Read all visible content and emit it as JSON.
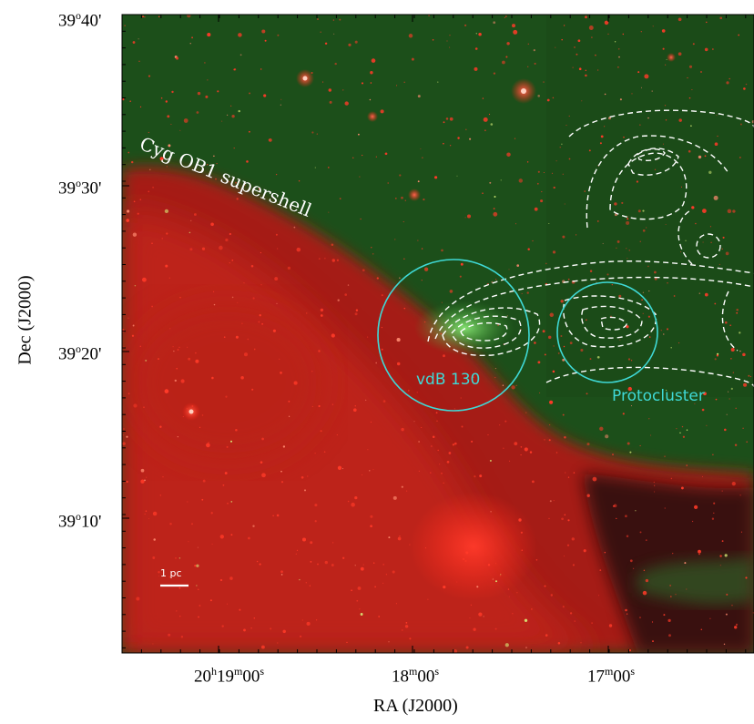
{
  "figure": {
    "x_axis_title": "RA (J2000)",
    "y_axis_title": "Dec (J2000)",
    "x_ticks": [
      {
        "h": "20",
        "m": "19",
        "s": "00",
        "show_hours": true
      },
      {
        "h": "",
        "m": "18",
        "s": "00",
        "show_hours": false
      },
      {
        "h": "",
        "m": "17",
        "s": "00",
        "show_hours": false
      }
    ],
    "y_ticks": [
      {
        "deg": "39",
        "min": "40"
      },
      {
        "deg": "39",
        "min": "30"
      },
      {
        "deg": "39",
        "min": "20"
      },
      {
        "deg": "39",
        "min": "10"
      }
    ],
    "labels": {
      "supershell": "Cyg OB1 supershell",
      "vdb130": "vdB 130",
      "protocluster": "Protocluster",
      "scale_bar": "1 pc"
    },
    "colors": {
      "background_green": "#1f5a1c",
      "nebula_red": "#d8231a",
      "circle": "#3fd9d6",
      "contour": "#ffffff",
      "text_white": "#ffffff"
    },
    "contour_style": "dashed"
  }
}
